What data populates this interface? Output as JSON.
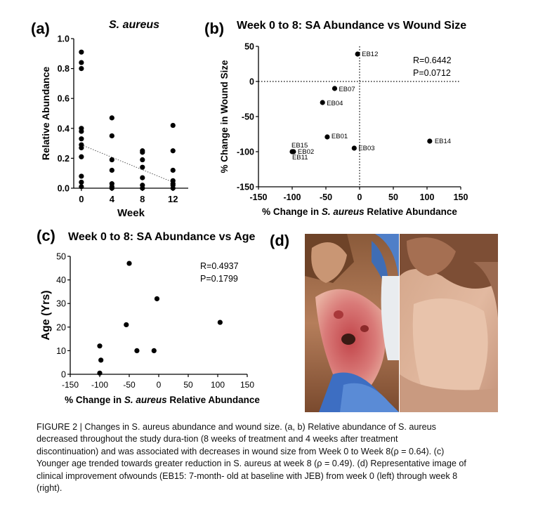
{
  "panels": {
    "a": {
      "letter": "(a)",
      "title": "S. aureus"
    },
    "b": {
      "letter": "(b)",
      "title": "Week 0 to 8: SA Abundance vs Wound Size"
    },
    "c": {
      "letter": "(c)",
      "title": "Week 0 to 8: SA Abundance vs Age"
    },
    "d": {
      "letter": "(d)"
    }
  },
  "chart_data": [
    {
      "type": "scatter",
      "panel": "a",
      "title": "S. aureus",
      "xlabel": "Week",
      "ylabel": "Relative Abundance",
      "x_ticks": [
        0,
        4,
        8,
        12
      ],
      "y_ticks": [
        "0.0",
        "0.2",
        "0.4",
        "0.6",
        "0.8",
        "1.0"
      ],
      "xlim": [
        -1,
        14
      ],
      "ylim": [
        0,
        1.0
      ],
      "points": [
        {
          "x": 0,
          "y": 0.91
        },
        {
          "x": 0,
          "y": 0.84
        },
        {
          "x": 0,
          "y": 0.8
        },
        {
          "x": 0,
          "y": 0.4
        },
        {
          "x": 0,
          "y": 0.38
        },
        {
          "x": 0,
          "y": 0.33
        },
        {
          "x": 0,
          "y": 0.29
        },
        {
          "x": 0,
          "y": 0.27
        },
        {
          "x": 0,
          "y": 0.21
        },
        {
          "x": 0,
          "y": 0.08
        },
        {
          "x": 0,
          "y": 0.04
        },
        {
          "x": 0,
          "y": 0.01
        },
        {
          "x": 4,
          "y": 0.47
        },
        {
          "x": 4,
          "y": 0.35
        },
        {
          "x": 4,
          "y": 0.19
        },
        {
          "x": 4,
          "y": 0.12
        },
        {
          "x": 4,
          "y": 0.03
        },
        {
          "x": 4,
          "y": 0.01
        },
        {
          "x": 4,
          "y": 0.0
        },
        {
          "x": 8,
          "y": 0.25
        },
        {
          "x": 8,
          "y": 0.24
        },
        {
          "x": 8,
          "y": 0.19
        },
        {
          "x": 8,
          "y": 0.14
        },
        {
          "x": 8,
          "y": 0.07
        },
        {
          "x": 8,
          "y": 0.02
        },
        {
          "x": 8,
          "y": 0.0
        },
        {
          "x": 12,
          "y": 0.42
        },
        {
          "x": 12,
          "y": 0.25
        },
        {
          "x": 12,
          "y": 0.12
        },
        {
          "x": 12,
          "y": 0.05
        },
        {
          "x": 12,
          "y": 0.03
        },
        {
          "x": 12,
          "y": 0.02
        },
        {
          "x": 12,
          "y": 0.0
        }
      ],
      "trendline": {
        "x": [
          0,
          12
        ],
        "y": [
          0.29,
          0.04
        ],
        "style": "dotted"
      }
    },
    {
      "type": "scatter",
      "panel": "b",
      "title": "Week 0 to 8: SA Abundance vs Wound Size",
      "xlabel_prefix": "% Change in ",
      "xlabel_italic": "S. aureus",
      "xlabel_suffix": " Relative Abundance",
      "ylabel": "% Change in Wound Size",
      "x_ticks": [
        -150,
        -100,
        -50,
        0,
        50,
        100,
        150
      ],
      "y_ticks": [
        50,
        0,
        -50,
        -100,
        -150
      ],
      "xlim": [
        -150,
        150
      ],
      "ylim": [
        -150,
        50
      ],
      "reference_lines": {
        "x": 0,
        "y": 0,
        "style": "dotted"
      },
      "annotation": [
        "R=0.6442",
        "P=0.0712"
      ],
      "points": [
        {
          "x": -3,
          "y": 39,
          "label": "EB12"
        },
        {
          "x": -37,
          "y": -10,
          "label": "EB07"
        },
        {
          "x": -55,
          "y": -30,
          "label": "EB04"
        },
        {
          "x": -48,
          "y": -79,
          "label": "EB01"
        },
        {
          "x": -8,
          "y": -95,
          "label": "EB03"
        },
        {
          "x": 104,
          "y": -85,
          "label": "EB14"
        },
        {
          "x": -100,
          "y": -100,
          "label": "EB15"
        },
        {
          "x": -98,
          "y": -100,
          "label": "EB02"
        },
        {
          "x": -99,
          "y": -100,
          "label": "EB11"
        }
      ]
    },
    {
      "type": "scatter",
      "panel": "c",
      "title": "Week 0 to 8: SA Abundance vs Age",
      "xlabel_prefix": "% Change in ",
      "xlabel_italic": "S. aureus",
      "xlabel_suffix": " Relative Abundance",
      "ylabel": "Age (Yrs)",
      "x_ticks": [
        -150,
        -100,
        -50,
        0,
        50,
        100,
        150
      ],
      "y_ticks": [
        0,
        10,
        20,
        30,
        40,
        50
      ],
      "xlim": [
        -150,
        150
      ],
      "ylim": [
        0,
        50
      ],
      "annotation": [
        "R=0.4937",
        "P=0.1799"
      ],
      "points": [
        {
          "x": -100,
          "y": 12
        },
        {
          "x": -98,
          "y": 6
        },
        {
          "x": -100,
          "y": 0.5
        },
        {
          "x": -55,
          "y": 21
        },
        {
          "x": -50,
          "y": 47
        },
        {
          "x": -37,
          "y": 10
        },
        {
          "x": -8,
          "y": 10
        },
        {
          "x": -3,
          "y": 32
        },
        {
          "x": 104,
          "y": 22
        }
      ]
    }
  ],
  "caption": {
    "lines": [
      "FIGURE 2 | Changes in S. aureus abundance and wound size. (a, b) Relative abundance of S. aureus",
      "decreased throughout the study dura-tion (8 weeks of treatment and 4 weeks after treatment",
      "discontinuation) and was associated with decreases in wound size from Week 0 to Week 8(ρ = 0.64). (c)",
      "Younger age trended towards greater reduction in S. aureus at week 8 (ρ = 0.49). (d) Representative image of",
      "clinical improvement ofwounds (EB15: 7-month- old at baseline with JEB) from week 0 (left) through week 8",
      "(right)."
    ]
  }
}
